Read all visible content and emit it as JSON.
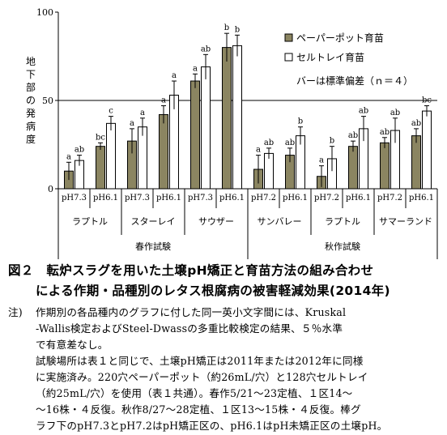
{
  "chart_data": {
    "type": "bar",
    "ylabel": "地下部の発病度",
    "ylim": [
      0,
      100
    ],
    "yticks": [
      "0",
      "50",
      "100"
    ],
    "categories": [
      {
        "ph": "pH7.3",
        "variety": "ラプトル",
        "trial": "春作試験"
      },
      {
        "ph": "pH6.1",
        "variety": "ラプトル",
        "trial": "春作試験"
      },
      {
        "ph": "pH7.3",
        "variety": "スターレイ",
        "trial": "春作試験"
      },
      {
        "ph": "pH6.1",
        "variety": "スターレイ",
        "trial": "春作試験"
      },
      {
        "ph": "pH7.3",
        "variety": "サウザー",
        "trial": "春作試験"
      },
      {
        "ph": "pH6.1",
        "variety": "サウザー",
        "trial": "春作試験"
      },
      {
        "ph": "pH7.2",
        "variety": "サンバレー",
        "trial": "秋作試験"
      },
      {
        "ph": "pH6.1",
        "variety": "サンバレー",
        "trial": "秋作試験"
      },
      {
        "ph": "pH7.2",
        "variety": "ラプトル",
        "trial": "秋作試験"
      },
      {
        "ph": "pH6.1",
        "variety": "ラプトル",
        "trial": "秋作試験"
      },
      {
        "ph": "pH7.2",
        "variety": "サマーランド",
        "trial": "秋作試験"
      },
      {
        "ph": "pH6.1",
        "variety": "サマーランド",
        "trial": "秋作試験"
      }
    ],
    "varieties": [
      "ラプトル",
      "スターレイ",
      "サウザー",
      "サンバレー",
      "ラプトル",
      "サマーランド"
    ],
    "trials": [
      "春作試験",
      "秋作試験"
    ],
    "series": [
      {
        "name": "ペーパーポット育苗",
        "color": "#8b8561",
        "values": [
          10,
          24,
          27,
          42,
          61,
          80,
          11,
          19,
          7,
          24,
          26,
          30
        ],
        "errors": [
          5,
          2,
          7,
          5,
          4,
          8,
          8,
          4,
          6,
          3,
          3,
          4
        ],
        "letters": [
          "a",
          "bc",
          "a",
          "a",
          "a",
          "b",
          "a",
          "ab",
          "a",
          "ab",
          "ab",
          "ab"
        ]
      },
      {
        "name": "セルトレイ育苗",
        "color": "#ffffff",
        "values": [
          16,
          37,
          35,
          53,
          69,
          81,
          20,
          30,
          17,
          34,
          33,
          44
        ],
        "errors": [
          3,
          4,
          5,
          8,
          7,
          6,
          3,
          5,
          7,
          7,
          7,
          3
        ],
        "letters": [
          "ab",
          "c",
          "a",
          "a",
          "ab",
          "b",
          "ab",
          "b",
          "b",
          "ab",
          "ab",
          "bc"
        ]
      }
    ],
    "note": "バーは標準偏差（ｎ＝４）"
  },
  "caption": {
    "line1": "図２　転炉スラグを用いた土壌pH矯正と育苗方法の組み合わせ",
    "line2": "による作期・品種別のレタス根腐病の被害軽減効果(2014年)"
  },
  "notes": {
    "label": "注)",
    "lines": [
      "作期別の各品種内のグラフに付した同一英小文字間には、Kruskal",
      "-Wallis検定およびSteel-Dwassの多重比較検定の結果、５％水準",
      "で有意差なし。",
      "試験場所は表１と同じで、土壌pH矯正は2011年または2012年に同様",
      "に実施済み。220穴ペーパーポット（約26mL/穴）と128穴セルトレイ",
      "（約25mL/穴）を使用（表１共通）。春作5/21～23定植、１区14～",
      "～16株・４反復。秋作8/27～28定植、１区13～15株・４反復。棒グ",
      "ラフ下のpH7.3とpH7.2はpH矯正区の、pH6.1はpH未矯正区の土壌pH。"
    ]
  }
}
